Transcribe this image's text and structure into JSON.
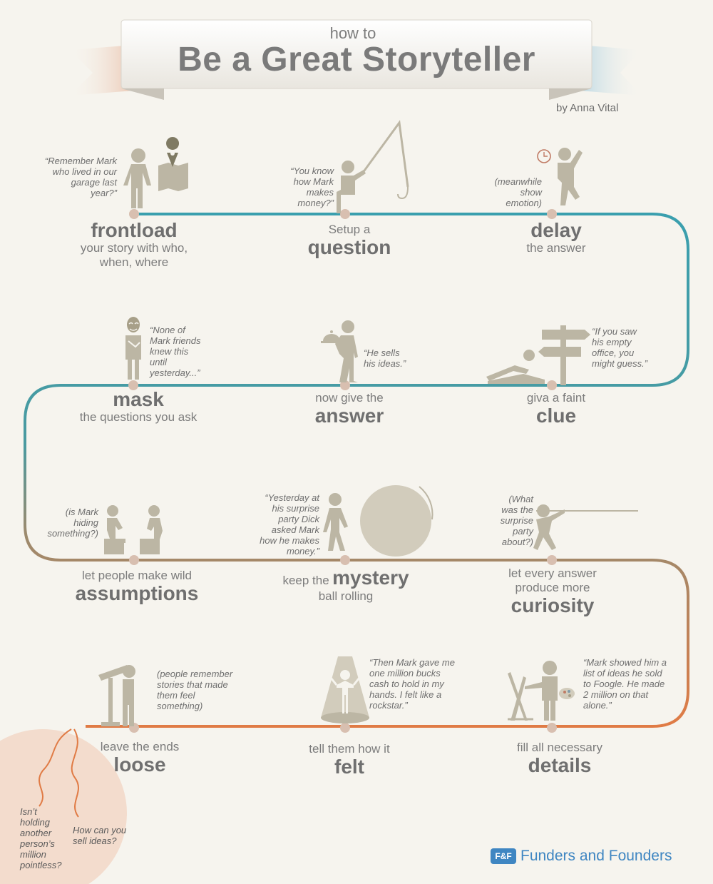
{
  "title": {
    "pre": "how to",
    "main": "Be a Great Storyteller",
    "byline": "by Anna Vital"
  },
  "steps": [
    {
      "small": "",
      "big": "frontload",
      "after": "your story with who, when, where",
      "quote": "“Remember Mark who lived in our garage last year?”"
    },
    {
      "small": "Setup a",
      "big": "question",
      "after": "",
      "quote": "“You know how Mark makes money?”"
    },
    {
      "small": "",
      "big": "delay",
      "after": "the answer",
      "quote": "(meanwhile show emotion)"
    },
    {
      "small": "",
      "big": "mask",
      "after": "the questions you ask",
      "quote": "“None of Mark friends knew this until yesterday...”"
    },
    {
      "small": "now give the",
      "big": "answer",
      "after": "",
      "quote": "“He sells his ideas.”"
    },
    {
      "small": "giva a faint",
      "big": "clue",
      "after": "",
      "quote": "“If you saw his empty office, you might guess.”"
    },
    {
      "small": "let people make wild",
      "big": "assumptions",
      "after": "",
      "quote": "(is Mark hiding something?)"
    },
    {
      "small": "keep the",
      "big": "mystery",
      "after": "ball rolling",
      "quote": "“Yesterday at his surprise party Dick asked Mark how he makes money.”"
    },
    {
      "small": "let every answer produce more",
      "big": "curiosity",
      "after": "",
      "quote": "(What was the surprise party about?)"
    },
    {
      "small": "leave the ends",
      "big": "loose",
      "after": "",
      "quote": "(people remember stories that made them feel something)"
    },
    {
      "small": "tell them how it",
      "big": "felt",
      "after": "",
      "quote": "“Then Mark gave me one million bucks cash to hold  in my hands. I felt like a rockstar.”"
    },
    {
      "small": "fill all necessary",
      "big": "details",
      "after": "",
      "quote": "“Mark showed him a list of ideas he sold to Foogle. He made 2 million on that alone.”"
    }
  ],
  "end_questions": [
    "Isn’t holding another person’s million pointless?",
    "How can you sell ideas?"
  ],
  "brand": {
    "logo": "F&F",
    "name": "Funders and Founders"
  },
  "colors": {
    "path_start": "#3a9fae",
    "path_mid": "#9b8a6e",
    "path_end": "#e07b45",
    "figure": "#bcb6a4",
    "node": "#d8bfb0",
    "ribbon": "#e7d9cc",
    "ribbon_blue": "#a9cfe0",
    "corner": "#f3dccd"
  },
  "icons": [
    "map-pin-icon",
    "fishing-rod-icon",
    "clock-icon",
    "mask-icon",
    "cloche-icon",
    "signpost-icon",
    "ball-icon",
    "rope-icon",
    "telescope-icon",
    "spotlight-icon",
    "easel-icon",
    "palette-icon",
    "funders-founders-logo-icon"
  ]
}
